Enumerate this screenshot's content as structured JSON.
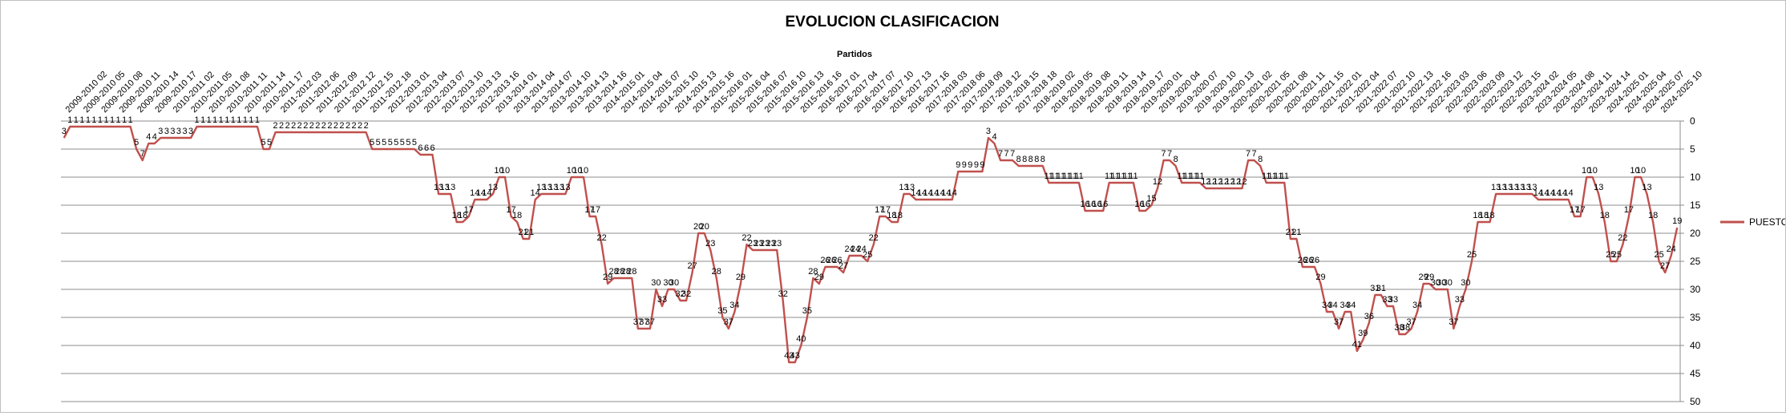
{
  "chart_data": {
    "type": "line",
    "title": "EVOLUCION CLASIFICACION",
    "xlabel": "Partidos",
    "ylabel": "",
    "ylim": [
      0,
      50
    ],
    "y_reversed": true,
    "y_ticks": [
      0,
      5,
      10,
      15,
      20,
      25,
      30,
      35,
      40,
      45,
      50
    ],
    "grid": true,
    "legend": "right",
    "tick_labels": [
      "2009-2010 02",
      "2009-2010 05",
      "2009-2010 08",
      "2009-2010 11",
      "2009-2010 14",
      "2009-2010 17",
      "2010-2011 02",
      "2010-2011 05",
      "2010-2011 08",
      "2010-2011 11",
      "2010-2011 14",
      "2010-2011 17",
      "2011-2012 03",
      "2011-2012 06",
      "2011-2012 09",
      "2011-2012 12",
      "2011-2012 15",
      "2011-2012 18",
      "2012-2013 01",
      "2012-2013 04",
      "2012-2013 07",
      "2012-2013 10",
      "2012-2013 13",
      "2012-2013 16",
      "2013-2014 01",
      "2013-2014 04",
      "2013-2014 07",
      "2013-2014 10",
      "2013-2014 13",
      "2013-2014 16",
      "2014-2015 01",
      "2014-2015 04",
      "2014-2015 07",
      "2014-2015 10",
      "2014-2015 13",
      "2014-2015 16",
      "2015-2016 01",
      "2015-2016 04",
      "2015-2016 07",
      "2015-2016 10",
      "2015-2016 13",
      "2015-2016 16",
      "2016-2017 01",
      "2016-2017 04",
      "2016-2017 07",
      "2016-2017 10",
      "2016-2017 13",
      "2016-2017 16",
      "2017-2018 03",
      "2017-2018 06",
      "2017-2018 09",
      "2017-2018 12",
      "2017-2018 15",
      "2017-2018 18",
      "2018-2019 02",
      "2018-2019 05",
      "2018-2019 08",
      "2018-2019 11",
      "2018-2019 14",
      "2018-2019 17",
      "2019-2020 01",
      "2019-2020 04",
      "2019-2020 07",
      "2019-2020 10",
      "2019-2020 13",
      "2020-2021 02",
      "2020-2021 05",
      "2020-2021 08",
      "2020-2021 11",
      "2020-2021 15",
      "2021-2022 01",
      "2021-2022 04",
      "2021-2022 07",
      "2021-2022 10",
      "2021-2022 13",
      "2021-2022 16",
      "2022-2023 03",
      "2022-2023 06",
      "2022-2023 09",
      "2022-2023 12",
      "2022-2023 15",
      "2023-2024 02",
      "2023-2024 05",
      "2023-2024 08",
      "2023-2024 11",
      "2023-2024 14",
      "2024-2025 01",
      "2024-2025 04",
      "2024-2025 07",
      "2024-2025 10"
    ],
    "series": [
      {
        "name": "PUESTO",
        "color": "#c0504d",
        "values": [
          3,
          1,
          1,
          1,
          1,
          1,
          1,
          1,
          1,
          1,
          1,
          1,
          5,
          7,
          4,
          4,
          3,
          3,
          3,
          3,
          3,
          3,
          1,
          1,
          1,
          1,
          1,
          1,
          1,
          1,
          1,
          1,
          1,
          5,
          5,
          2,
          2,
          2,
          2,
          2,
          2,
          2,
          2,
          2,
          2,
          2,
          2,
          2,
          2,
          2,
          2,
          5,
          5,
          5,
          5,
          5,
          5,
          5,
          5,
          6,
          6,
          6,
          13,
          13,
          13,
          18,
          18,
          17,
          14,
          14,
          14,
          13,
          10,
          10,
          17,
          18,
          21,
          21,
          14,
          13,
          13,
          13,
          13,
          13,
          10,
          10,
          10,
          17,
          17,
          22,
          29,
          28,
          28,
          28,
          28,
          37,
          37,
          37,
          30,
          33,
          30,
          30,
          32,
          32,
          27,
          20,
          20,
          23,
          28,
          35,
          37,
          34,
          29,
          22,
          23,
          23,
          23,
          23,
          23,
          32,
          43,
          43,
          40,
          35,
          28,
          29,
          26,
          26,
          26,
          27,
          24,
          24,
          24,
          25,
          22,
          17,
          17,
          18,
          18,
          13,
          13,
          14,
          14,
          14,
          14,
          14,
          14,
          14,
          9,
          9,
          9,
          9,
          9,
          3,
          4,
          7,
          7,
          7,
          8,
          8,
          8,
          8,
          8,
          11,
          11,
          11,
          11,
          11,
          11,
          16,
          16,
          16,
          16,
          11,
          11,
          11,
          11,
          11,
          16,
          16,
          15,
          12,
          7,
          7,
          8,
          11,
          11,
          11,
          11,
          12,
          12,
          12,
          12,
          12,
          12,
          12,
          7,
          7,
          8,
          11,
          11,
          11,
          11,
          21,
          21,
          26,
          26,
          26,
          29,
          34,
          34,
          37,
          34,
          34,
          41,
          39,
          36,
          31,
          31,
          33,
          33,
          38,
          38,
          37,
          34,
          29,
          29,
          30,
          30,
          30,
          37,
          33,
          30,
          25,
          18,
          18,
          18,
          13,
          13,
          13,
          13,
          13,
          13,
          13,
          14,
          14,
          14,
          14,
          14,
          14,
          17,
          17,
          10,
          10,
          13,
          18,
          25,
          25,
          22,
          17,
          10,
          10,
          13,
          18,
          25,
          27,
          24,
          19
        ]
      }
    ]
  }
}
